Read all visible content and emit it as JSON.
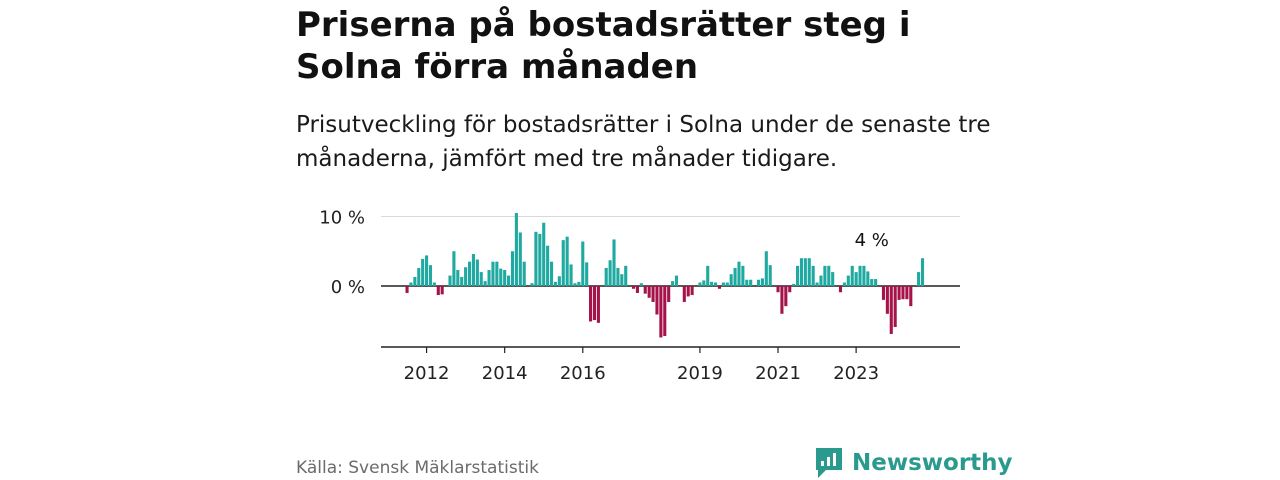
{
  "title": "Priserna på bostadsrätter steg i Solna förra månaden",
  "subtitle": "Prisutveckling för bostadsrätter i Solna under de senaste tre månaderna, jämfört med tre månader tidigare.",
  "source": "Källa: Svensk Mäklarstatistik",
  "brand": "Newsworthy",
  "colors": {
    "positive": "#1fa9a0",
    "negative": "#a5134a",
    "brand": "#2b9a8e"
  },
  "chart_data": {
    "type": "bar",
    "title": "Priserna på bostadsrätter steg i Solna förra månaden",
    "ylabel": "",
    "ylim": [
      -8.7,
      10
    ],
    "yticks": [
      {
        "value": 10,
        "label": "10 %"
      },
      {
        "value": 0,
        "label": "0 %"
      }
    ],
    "xticks": [
      {
        "index": 5,
        "label": "2012"
      },
      {
        "index": 25,
        "label": "2014"
      },
      {
        "index": 45,
        "label": "2016"
      },
      {
        "index": 75,
        "label": "2019"
      },
      {
        "index": 95,
        "label": "2021"
      },
      {
        "index": 115,
        "label": "2023"
      }
    ],
    "annotation": {
      "index": 119,
      "label": "4 %"
    },
    "values": [
      -1,
      0.5,
      1.3,
      2.6,
      3.9,
      4.4,
      3,
      0.5,
      -1.3,
      -1.2,
      0,
      1.5,
      5,
      2.3,
      1.3,
      2.7,
      3.5,
      4.6,
      3.8,
      2,
      0.7,
      2.3,
      3.5,
      3.5,
      2.5,
      2.3,
      1.5,
      5,
      10.5,
      7.7,
      3.5,
      0,
      0.4,
      7.8,
      7.5,
      9.1,
      5.8,
      3.5,
      0.6,
      1.4,
      6.6,
      7.1,
      3.1,
      0.4,
      0.6,
      6.4,
      3.4,
      -5.1,
      -4.9,
      -5.3,
      0,
      2.6,
      3.7,
      6.7,
      2.6,
      1.7,
      2.9,
      0,
      -0.4,
      -1,
      0.4,
      -1.1,
      -1.7,
      -2.3,
      -4.1,
      -7.4,
      -7.2,
      -2.3,
      0.7,
      1.5,
      0,
      -2.3,
      -1.5,
      -1.3,
      0,
      0.5,
      0.8,
      2.9,
      0.6,
      0.5,
      -0.4,
      0.5,
      0.5,
      1.7,
      2.6,
      3.5,
      2.9,
      0.9,
      0.9,
      0,
      0.9,
      1.1,
      5,
      3,
      0,
      -0.9,
      -4,
      -2.9,
      -0.9,
      0.3,
      2.9,
      4,
      4,
      4,
      2.9,
      0.5,
      1.5,
      2.9,
      2.9,
      2,
      0,
      -0.9,
      0.5,
      1.5,
      2.9,
      2,
      2.9,
      2.9,
      2.1,
      1,
      1,
      0,
      -2,
      -4,
      -6.9,
      -5.9,
      -2,
      -1.9,
      -1.9,
      -2.9,
      0,
      2,
      4
    ]
  }
}
